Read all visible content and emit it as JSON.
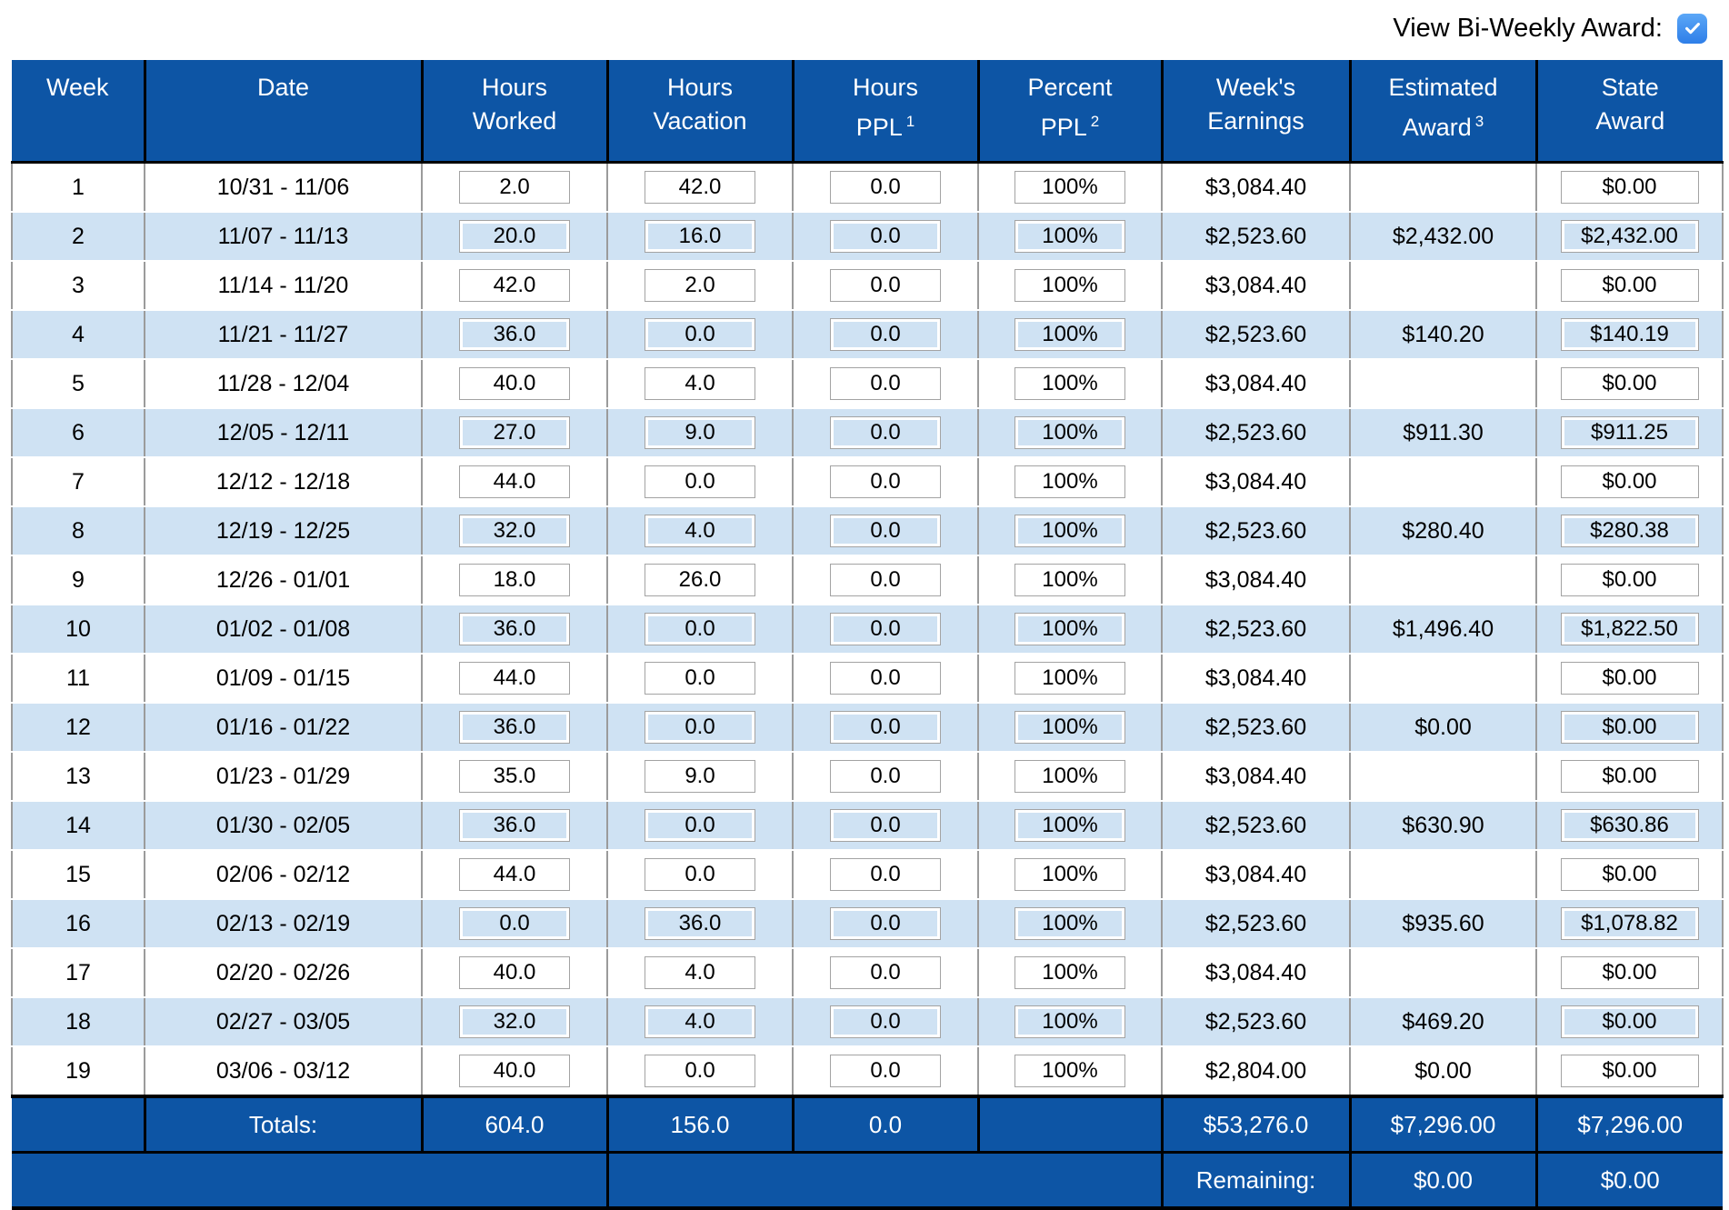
{
  "controls": {
    "view_biweekly_label": "View Bi-Weekly Award:",
    "view_biweekly_checked": true
  },
  "colors": {
    "header_blue": "#0d55a5",
    "row_alt_blue": "#cfe2f3",
    "checkbox_blue": "#2e7ee8",
    "checkbox_blue_light": "#5ba7f7"
  },
  "columns": [
    {
      "line1": "Week",
      "line2": "",
      "sup": ""
    },
    {
      "line1": "Date",
      "line2": "",
      "sup": ""
    },
    {
      "line1": "Hours",
      "line2": "Worked",
      "sup": ""
    },
    {
      "line1": "Hours",
      "line2": "Vacation",
      "sup": ""
    },
    {
      "line1": "Hours",
      "line2": "PPL",
      "sup": "1"
    },
    {
      "line1": "Percent",
      "line2": "PPL",
      "sup": "2"
    },
    {
      "line1": "Week's",
      "line2": "Earnings",
      "sup": ""
    },
    {
      "line1": "Estimated",
      "line2": "Award",
      "sup": "3"
    },
    {
      "line1": "State",
      "line2": "Award",
      "sup": ""
    }
  ],
  "rows": [
    {
      "week": "1",
      "date": "10/31 - 11/06",
      "hours_worked": "2.0",
      "hours_vacation": "42.0",
      "hours_ppl": "0.0",
      "percent_ppl": "100%",
      "weeks_earnings": "$3,084.40",
      "estimated_award": "",
      "state_award": "$0.00"
    },
    {
      "week": "2",
      "date": "11/07 - 11/13",
      "hours_worked": "20.0",
      "hours_vacation": "16.0",
      "hours_ppl": "0.0",
      "percent_ppl": "100%",
      "weeks_earnings": "$2,523.60",
      "estimated_award": "$2,432.00",
      "state_award": "$2,432.00"
    },
    {
      "week": "3",
      "date": "11/14 - 11/20",
      "hours_worked": "42.0",
      "hours_vacation": "2.0",
      "hours_ppl": "0.0",
      "percent_ppl": "100%",
      "weeks_earnings": "$3,084.40",
      "estimated_award": "",
      "state_award": "$0.00"
    },
    {
      "week": "4",
      "date": "11/21 - 11/27",
      "hours_worked": "36.0",
      "hours_vacation": "0.0",
      "hours_ppl": "0.0",
      "percent_ppl": "100%",
      "weeks_earnings": "$2,523.60",
      "estimated_award": "$140.20",
      "state_award": "$140.19"
    },
    {
      "week": "5",
      "date": "11/28 - 12/04",
      "hours_worked": "40.0",
      "hours_vacation": "4.0",
      "hours_ppl": "0.0",
      "percent_ppl": "100%",
      "weeks_earnings": "$3,084.40",
      "estimated_award": "",
      "state_award": "$0.00"
    },
    {
      "week": "6",
      "date": "12/05 - 12/11",
      "hours_worked": "27.0",
      "hours_vacation": "9.0",
      "hours_ppl": "0.0",
      "percent_ppl": "100%",
      "weeks_earnings": "$2,523.60",
      "estimated_award": "$911.30",
      "state_award": "$911.25"
    },
    {
      "week": "7",
      "date": "12/12 - 12/18",
      "hours_worked": "44.0",
      "hours_vacation": "0.0",
      "hours_ppl": "0.0",
      "percent_ppl": "100%",
      "weeks_earnings": "$3,084.40",
      "estimated_award": "",
      "state_award": "$0.00"
    },
    {
      "week": "8",
      "date": "12/19 - 12/25",
      "hours_worked": "32.0",
      "hours_vacation": "4.0",
      "hours_ppl": "0.0",
      "percent_ppl": "100%",
      "weeks_earnings": "$2,523.60",
      "estimated_award": "$280.40",
      "state_award": "$280.38"
    },
    {
      "week": "9",
      "date": "12/26 - 01/01",
      "hours_worked": "18.0",
      "hours_vacation": "26.0",
      "hours_ppl": "0.0",
      "percent_ppl": "100%",
      "weeks_earnings": "$3,084.40",
      "estimated_award": "",
      "state_award": "$0.00"
    },
    {
      "week": "10",
      "date": "01/02 - 01/08",
      "hours_worked": "36.0",
      "hours_vacation": "0.0",
      "hours_ppl": "0.0",
      "percent_ppl": "100%",
      "weeks_earnings": "$2,523.60",
      "estimated_award": "$1,496.40",
      "state_award": "$1,822.50"
    },
    {
      "week": "11",
      "date": "01/09 - 01/15",
      "hours_worked": "44.0",
      "hours_vacation": "0.0",
      "hours_ppl": "0.0",
      "percent_ppl": "100%",
      "weeks_earnings": "$3,084.40",
      "estimated_award": "",
      "state_award": "$0.00"
    },
    {
      "week": "12",
      "date": "01/16 - 01/22",
      "hours_worked": "36.0",
      "hours_vacation": "0.0",
      "hours_ppl": "0.0",
      "percent_ppl": "100%",
      "weeks_earnings": "$2,523.60",
      "estimated_award": "$0.00",
      "state_award": "$0.00"
    },
    {
      "week": "13",
      "date": "01/23 - 01/29",
      "hours_worked": "35.0",
      "hours_vacation": "9.0",
      "hours_ppl": "0.0",
      "percent_ppl": "100%",
      "weeks_earnings": "$3,084.40",
      "estimated_award": "",
      "state_award": "$0.00"
    },
    {
      "week": "14",
      "date": "01/30 - 02/05",
      "hours_worked": "36.0",
      "hours_vacation": "0.0",
      "hours_ppl": "0.0",
      "percent_ppl": "100%",
      "weeks_earnings": "$2,523.60",
      "estimated_award": "$630.90",
      "state_award": "$630.86"
    },
    {
      "week": "15",
      "date": "02/06 - 02/12",
      "hours_worked": "44.0",
      "hours_vacation": "0.0",
      "hours_ppl": "0.0",
      "percent_ppl": "100%",
      "weeks_earnings": "$3,084.40",
      "estimated_award": "",
      "state_award": "$0.00"
    },
    {
      "week": "16",
      "date": "02/13 - 02/19",
      "hours_worked": "0.0",
      "hours_vacation": "36.0",
      "hours_ppl": "0.0",
      "percent_ppl": "100%",
      "weeks_earnings": "$2,523.60",
      "estimated_award": "$935.60",
      "state_award": "$1,078.82"
    },
    {
      "week": "17",
      "date": "02/20 - 02/26",
      "hours_worked": "40.0",
      "hours_vacation": "4.0",
      "hours_ppl": "0.0",
      "percent_ppl": "100%",
      "weeks_earnings": "$3,084.40",
      "estimated_award": "",
      "state_award": "$0.00"
    },
    {
      "week": "18",
      "date": "02/27 - 03/05",
      "hours_worked": "32.0",
      "hours_vacation": "4.0",
      "hours_ppl": "0.0",
      "percent_ppl": "100%",
      "weeks_earnings": "$2,523.60",
      "estimated_award": "$469.20",
      "state_award": "$0.00"
    },
    {
      "week": "19",
      "date": "03/06 - 03/12",
      "hours_worked": "40.0",
      "hours_vacation": "0.0",
      "hours_ppl": "0.0",
      "percent_ppl": "100%",
      "weeks_earnings": "$2,804.00",
      "estimated_award": "$0.00",
      "state_award": "$0.00"
    }
  ],
  "totals": {
    "label": "Totals:",
    "hours_worked": "604.0",
    "hours_vacation": "156.0",
    "hours_ppl": "0.0",
    "weeks_earnings": "$53,276.0",
    "estimated_award": "$7,296.00",
    "state_award": "$7,296.00"
  },
  "remaining": {
    "label": "Remaining:",
    "estimated_award": "$0.00",
    "state_award": "$0.00"
  }
}
